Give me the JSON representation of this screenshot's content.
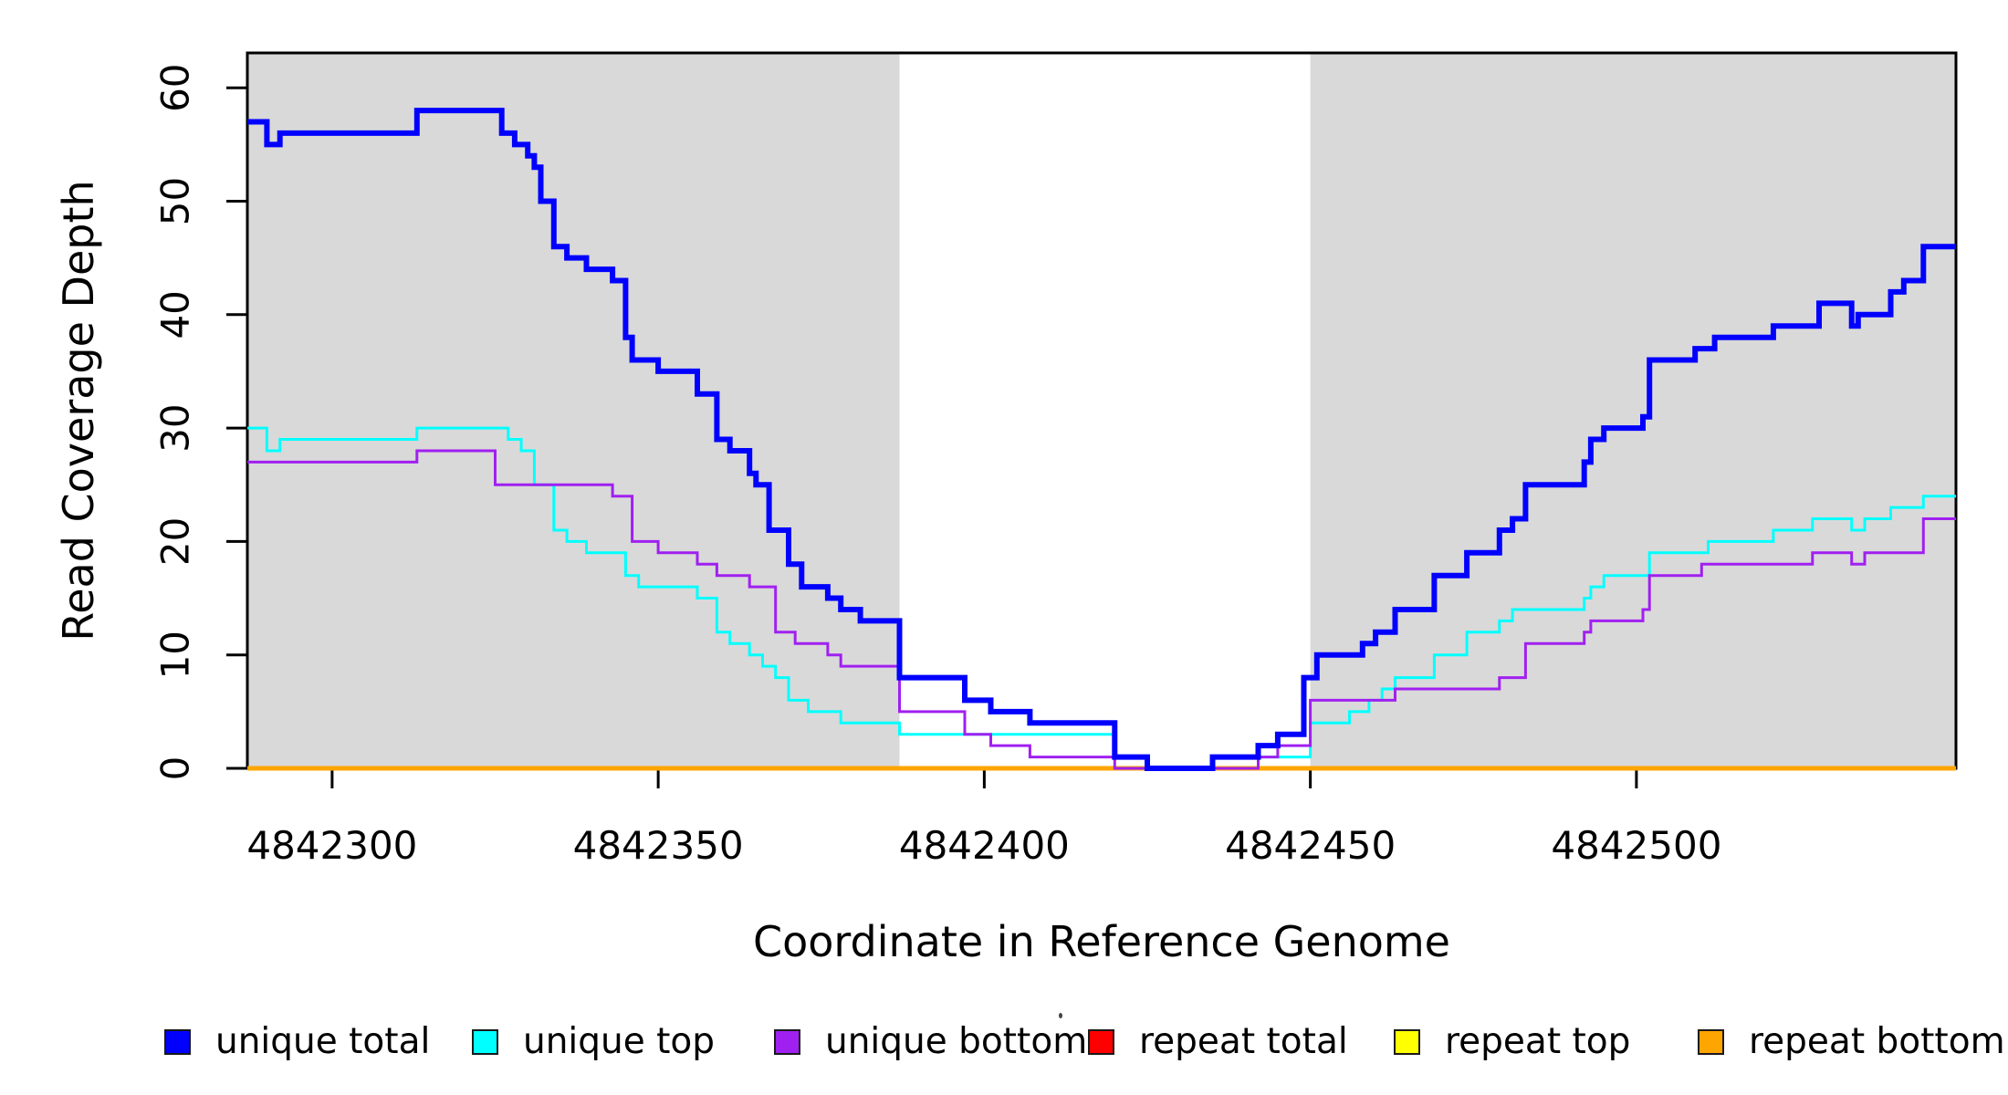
{
  "chart_data": {
    "type": "line",
    "subtype": "step-after",
    "title": "",
    "xlabel": "Coordinate in Reference Genome",
    "ylabel": "Read Coverage Depth",
    "x_range": [
      4842287,
      4842549
    ],
    "y_range": [
      0,
      63
    ],
    "grid": false,
    "legend_position": "bottom",
    "x_ticks": [
      4842300,
      4842350,
      4842400,
      4842450,
      4842500
    ],
    "x_tick_labels": [
      "4842300",
      "4842350",
      "4842400",
      "4842450",
      "4842500"
    ],
    "y_ticks": [
      0,
      10,
      20,
      30,
      40,
      50,
      60
    ],
    "y_tick_labels": [
      "0",
      "10",
      "20",
      "30",
      "40",
      "50",
      "60"
    ],
    "background_shading": {
      "color": "#d9d9d9",
      "regions": [
        [
          4842287,
          4842387
        ],
        [
          4842450,
          4842549
        ]
      ]
    },
    "draw_order": [
      3,
      4,
      5,
      1,
      2,
      0
    ],
    "series": [
      {
        "name": "unique total",
        "color": "#0000ff",
        "line_width": 6,
        "steps": [
          [
            4842287,
            57
          ],
          [
            4842290,
            55
          ],
          [
            4842292,
            56
          ],
          [
            4842313,
            58
          ],
          [
            4842326,
            56
          ],
          [
            4842328,
            55
          ],
          [
            4842330,
            54
          ],
          [
            4842331,
            53
          ],
          [
            4842332,
            50
          ],
          [
            4842334,
            46
          ],
          [
            4842336,
            45
          ],
          [
            4842339,
            44
          ],
          [
            4842343,
            43
          ],
          [
            4842345,
            38
          ],
          [
            4842346,
            36
          ],
          [
            4842350,
            35
          ],
          [
            4842356,
            33
          ],
          [
            4842359,
            29
          ],
          [
            4842361,
            28
          ],
          [
            4842364,
            26
          ],
          [
            4842365,
            25
          ],
          [
            4842367,
            21
          ],
          [
            4842370,
            18
          ],
          [
            4842372,
            16
          ],
          [
            4842376,
            15
          ],
          [
            4842378,
            14
          ],
          [
            4842381,
            13
          ],
          [
            4842387,
            8
          ],
          [
            4842397,
            6
          ],
          [
            4842401,
            5
          ],
          [
            4842407,
            4
          ],
          [
            4842420,
            1
          ],
          [
            4842425,
            0
          ],
          [
            4842435,
            1
          ],
          [
            4842442,
            2
          ],
          [
            4842445,
            3
          ],
          [
            4842449,
            8
          ],
          [
            4842451,
            10
          ],
          [
            4842458,
            11
          ],
          [
            4842460,
            12
          ],
          [
            4842463,
            14
          ],
          [
            4842469,
            17
          ],
          [
            4842474,
            19
          ],
          [
            4842479,
            21
          ],
          [
            4842481,
            22
          ],
          [
            4842483,
            25
          ],
          [
            4842492,
            27
          ],
          [
            4842493,
            29
          ],
          [
            4842495,
            30
          ],
          [
            4842501,
            31
          ],
          [
            4842502,
            36
          ],
          [
            4842509,
            37
          ],
          [
            4842512,
            38
          ],
          [
            4842521,
            39
          ],
          [
            4842528,
            41
          ],
          [
            4842533,
            39
          ],
          [
            4842534,
            40
          ],
          [
            4842539,
            42
          ],
          [
            4842541,
            43
          ],
          [
            4842544,
            46
          ],
          [
            4842549,
            46
          ]
        ]
      },
      {
        "name": "unique top",
        "color": "#00ffff",
        "line_width": 3,
        "steps": [
          [
            4842287,
            30
          ],
          [
            4842290,
            28
          ],
          [
            4842292,
            29
          ],
          [
            4842313,
            30
          ],
          [
            4842327,
            29
          ],
          [
            4842329,
            28
          ],
          [
            4842331,
            25
          ],
          [
            4842334,
            21
          ],
          [
            4842336,
            20
          ],
          [
            4842339,
            19
          ],
          [
            4842345,
            17
          ],
          [
            4842347,
            16
          ],
          [
            4842356,
            15
          ],
          [
            4842359,
            12
          ],
          [
            4842361,
            11
          ],
          [
            4842364,
            10
          ],
          [
            4842366,
            9
          ],
          [
            4842368,
            8
          ],
          [
            4842370,
            6
          ],
          [
            4842373,
            5
          ],
          [
            4842378,
            4
          ],
          [
            4842387,
            3
          ],
          [
            4842420,
            1
          ],
          [
            4842425,
            0
          ],
          [
            4842435,
            1
          ],
          [
            4842450,
            4
          ],
          [
            4842456,
            5
          ],
          [
            4842459,
            6
          ],
          [
            4842461,
            7
          ],
          [
            4842463,
            8
          ],
          [
            4842469,
            10
          ],
          [
            4842474,
            12
          ],
          [
            4842479,
            13
          ],
          [
            4842481,
            14
          ],
          [
            4842492,
            15
          ],
          [
            4842493,
            16
          ],
          [
            4842495,
            17
          ],
          [
            4842502,
            19
          ],
          [
            4842511,
            20
          ],
          [
            4842521,
            21
          ],
          [
            4842527,
            22
          ],
          [
            4842533,
            21
          ],
          [
            4842535,
            22
          ],
          [
            4842539,
            23
          ],
          [
            4842544,
            24
          ],
          [
            4842549,
            24
          ]
        ]
      },
      {
        "name": "unique bottom",
        "color": "#a020f0",
        "line_width": 3,
        "steps": [
          [
            4842287,
            27
          ],
          [
            4842313,
            28
          ],
          [
            4842325,
            25
          ],
          [
            4842343,
            24
          ],
          [
            4842346,
            20
          ],
          [
            4842350,
            19
          ],
          [
            4842356,
            18
          ],
          [
            4842359,
            17
          ],
          [
            4842364,
            16
          ],
          [
            4842368,
            12
          ],
          [
            4842371,
            11
          ],
          [
            4842376,
            10
          ],
          [
            4842378,
            9
          ],
          [
            4842387,
            5
          ],
          [
            4842397,
            3
          ],
          [
            4842401,
            2
          ],
          [
            4842407,
            1
          ],
          [
            4842420,
            0
          ],
          [
            4842442,
            1
          ],
          [
            4842445,
            2
          ],
          [
            4842450,
            6
          ],
          [
            4842463,
            7
          ],
          [
            4842479,
            8
          ],
          [
            4842483,
            11
          ],
          [
            4842492,
            12
          ],
          [
            4842493,
            13
          ],
          [
            4842501,
            14
          ],
          [
            4842502,
            17
          ],
          [
            4842510,
            18
          ],
          [
            4842527,
            19
          ],
          [
            4842533,
            18
          ],
          [
            4842535,
            19
          ],
          [
            4842544,
            22
          ],
          [
            4842549,
            22
          ]
        ]
      },
      {
        "name": "repeat total",
        "color": "#ff0000",
        "line_width": 3,
        "steps": [
          [
            4842287,
            0
          ],
          [
            4842549,
            0
          ]
        ]
      },
      {
        "name": "repeat top",
        "color": "#ffff00",
        "line_width": 3,
        "steps": [
          [
            4842287,
            0
          ],
          [
            4842549,
            0
          ]
        ]
      },
      {
        "name": "repeat bottom",
        "color": "#ffa500",
        "line_width": 5,
        "steps": [
          [
            4842287,
            0
          ],
          [
            4842549,
            0
          ]
        ]
      }
    ]
  },
  "legend": {
    "entries": [
      {
        "label": "unique total",
        "color": "#0000ff"
      },
      {
        "label": "unique top",
        "color": "#00ffff"
      },
      {
        "label": "unique bottom",
        "color": "#a020f0"
      },
      {
        "label": "repeat total",
        "color": "#ff0000"
      },
      {
        "label": "repeat top",
        "color": "#ffff00"
      },
      {
        "label": "repeat bottom",
        "color": "#ffa500"
      }
    ]
  }
}
